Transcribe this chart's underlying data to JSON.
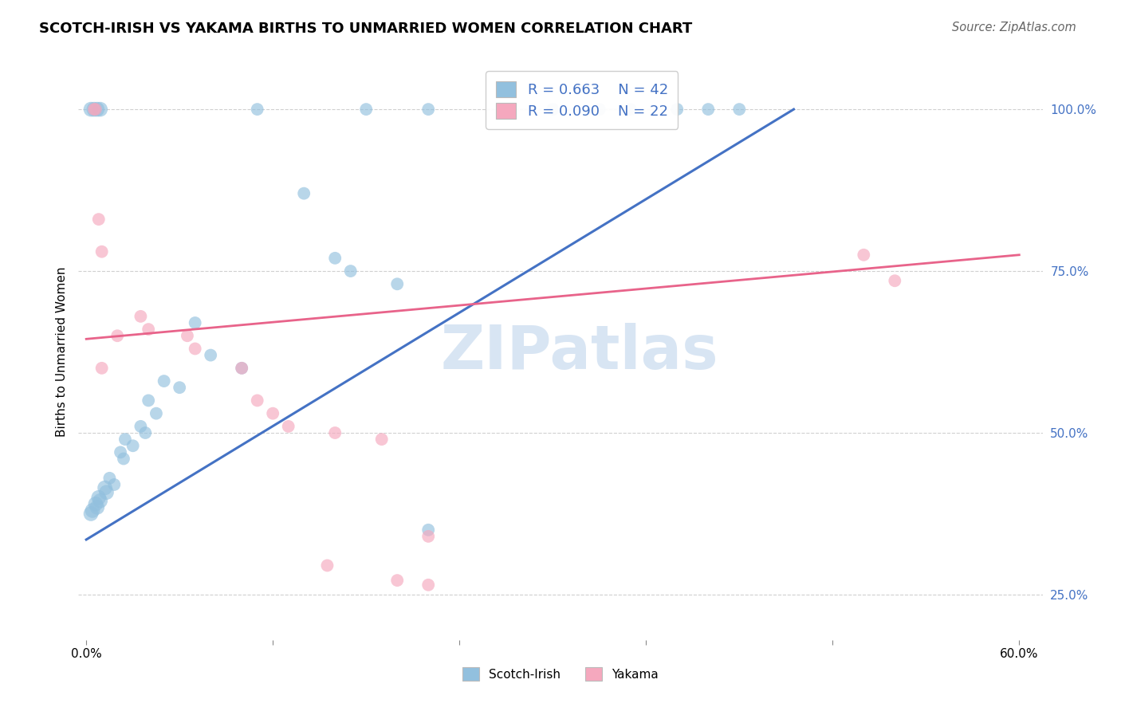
{
  "title": "SCOTCH-IRISH VS YAKAMA BIRTHS TO UNMARRIED WOMEN CORRELATION CHART",
  "source": "Source: ZipAtlas.com",
  "ylabel": "Births to Unmarried Women",
  "xlim": [
    -0.005,
    0.615
  ],
  "ylim": [
    0.18,
    1.07
  ],
  "xticks": [
    0.0,
    0.12,
    0.24,
    0.36,
    0.48,
    0.6
  ],
  "xtick_labels": [
    "0.0%",
    "",
    "",
    "",
    "",
    "60.0%"
  ],
  "ytick_vals_right": [
    1.0,
    0.75,
    0.5,
    0.25
  ],
  "ytick_labels_right": [
    "100.0%",
    "75.0%",
    "50.0%",
    "25.0%"
  ],
  "blue_r": "0.663",
  "blue_n": "42",
  "pink_r": "0.090",
  "pink_n": "22",
  "blue_color": "#92c0de",
  "pink_color": "#f5a8be",
  "blue_line_color": "#4472C4",
  "pink_line_color": "#e8638a",
  "legend_label_blue": "Scotch-Irish",
  "legend_label_pink": "Yakama",
  "watermark": "ZIPatlas",
  "blue_dots": [
    [
      0.003,
      1.0
    ],
    [
      0.005,
      1.0
    ],
    [
      0.007,
      1.0
    ],
    [
      0.009,
      1.0
    ],
    [
      0.11,
      1.0
    ],
    [
      0.18,
      1.0
    ],
    [
      0.22,
      1.0
    ],
    [
      0.27,
      1.0
    ],
    [
      0.3,
      1.0
    ],
    [
      0.33,
      1.0
    ],
    [
      0.35,
      1.0
    ],
    [
      0.38,
      1.0
    ],
    [
      0.4,
      1.0
    ],
    [
      0.42,
      1.0
    ],
    [
      0.14,
      0.87
    ],
    [
      0.16,
      0.77
    ],
    [
      0.17,
      0.75
    ],
    [
      0.2,
      0.73
    ],
    [
      0.07,
      0.67
    ],
    [
      0.08,
      0.62
    ],
    [
      0.1,
      0.6
    ],
    [
      0.05,
      0.58
    ],
    [
      0.06,
      0.57
    ],
    [
      0.04,
      0.55
    ],
    [
      0.045,
      0.53
    ],
    [
      0.035,
      0.51
    ],
    [
      0.038,
      0.5
    ],
    [
      0.025,
      0.49
    ],
    [
      0.03,
      0.48
    ],
    [
      0.022,
      0.47
    ],
    [
      0.024,
      0.46
    ],
    [
      0.015,
      0.43
    ],
    [
      0.018,
      0.42
    ],
    [
      0.012,
      0.415
    ],
    [
      0.013,
      0.408
    ],
    [
      0.008,
      0.4
    ],
    [
      0.009,
      0.395
    ],
    [
      0.006,
      0.39
    ],
    [
      0.007,
      0.385
    ],
    [
      0.004,
      0.38
    ],
    [
      0.003,
      0.375
    ],
    [
      0.22,
      0.35
    ]
  ],
  "pink_dots": [
    [
      0.005,
      1.0
    ],
    [
      0.006,
      1.0
    ],
    [
      0.008,
      0.83
    ],
    [
      0.01,
      0.78
    ],
    [
      0.02,
      0.65
    ],
    [
      0.01,
      0.6
    ],
    [
      0.035,
      0.68
    ],
    [
      0.04,
      0.66
    ],
    [
      0.065,
      0.65
    ],
    [
      0.07,
      0.63
    ],
    [
      0.1,
      0.6
    ],
    [
      0.11,
      0.55
    ],
    [
      0.12,
      0.53
    ],
    [
      0.13,
      0.51
    ],
    [
      0.16,
      0.5
    ],
    [
      0.19,
      0.49
    ],
    [
      0.22,
      0.34
    ],
    [
      0.155,
      0.295
    ],
    [
      0.2,
      0.272
    ],
    [
      0.22,
      0.265
    ],
    [
      0.5,
      0.775
    ],
    [
      0.52,
      0.735
    ]
  ],
  "blue_line_pts": [
    [
      0.0,
      0.335
    ],
    [
      0.455,
      1.0
    ]
  ],
  "pink_line_pts": [
    [
      0.0,
      0.645
    ],
    [
      0.6,
      0.775
    ]
  ],
  "background_color": "#ffffff",
  "grid_color": "#d0d0d0"
}
